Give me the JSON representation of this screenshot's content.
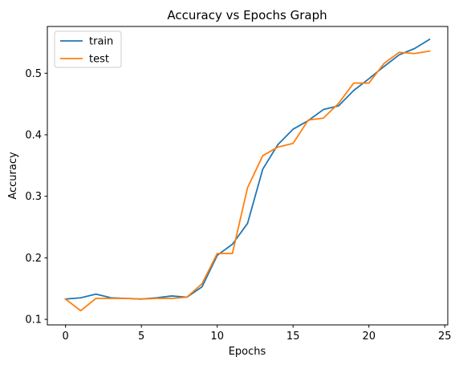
{
  "chart_data": {
    "type": "line",
    "title": "Accuracy vs Epochs Graph",
    "xlabel": "Epochs",
    "ylabel": "Accuracy",
    "xlim": [
      -1.2,
      25.2
    ],
    "ylim": [
      0.091,
      0.576
    ],
    "xticks": [
      0,
      5,
      10,
      15,
      20,
      25
    ],
    "yticks": [
      0.1,
      0.2,
      0.3,
      0.4,
      0.5
    ],
    "grid": false,
    "legend_position": "top-left",
    "x": [
      0,
      1,
      2,
      3,
      4,
      5,
      6,
      7,
      8,
      9,
      10,
      11,
      12,
      13,
      14,
      15,
      16,
      17,
      18,
      19,
      20,
      21,
      22,
      23,
      24
    ],
    "series": [
      {
        "name": "train",
        "color": "#1f77b4",
        "values": [
          0.133,
          0.135,
          0.141,
          0.135,
          0.134,
          0.133,
          0.135,
          0.138,
          0.136,
          0.153,
          0.204,
          0.222,
          0.256,
          0.344,
          0.384,
          0.409,
          0.423,
          0.441,
          0.447,
          0.472,
          0.491,
          0.511,
          0.53,
          0.54,
          0.555
        ]
      },
      {
        "name": "test",
        "color": "#ff7f0e",
        "values": [
          0.133,
          0.114,
          0.134,
          0.134,
          0.134,
          0.133,
          0.134,
          0.134,
          0.136,
          0.158,
          0.207,
          0.207,
          0.314,
          0.366,
          0.38,
          0.386,
          0.424,
          0.427,
          0.451,
          0.484,
          0.484,
          0.516,
          0.534,
          0.532,
          0.536
        ]
      }
    ]
  }
}
